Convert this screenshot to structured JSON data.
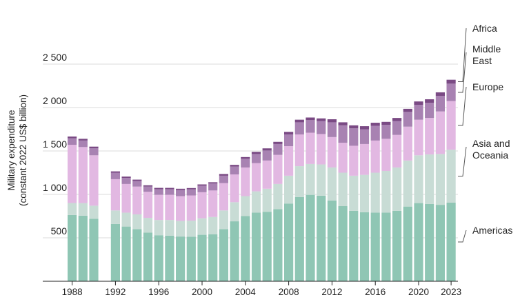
{
  "chart_data": {
    "type": "bar",
    "stacked": true,
    "ylabel_lines": [
      "Military expenditure",
      "(constant 2022 US$ billion)"
    ],
    "ylim": [
      0,
      2500
    ],
    "yticks": [
      500,
      1000,
      1500,
      2000,
      2500
    ],
    "ytick_labels": [
      "500",
      "1 000",
      "1 500",
      "2 000",
      "2 500"
    ],
    "grid": true,
    "xtick_labels": [
      "1988",
      "1992",
      "1996",
      "2000",
      "2004",
      "2008",
      "2012",
      "2016",
      "2020",
      "2023"
    ],
    "years": [
      1988,
      1989,
      1990,
      1991,
      1992,
      1993,
      1994,
      1995,
      1996,
      1997,
      1998,
      1999,
      2000,
      2001,
      2002,
      2003,
      2004,
      2005,
      2006,
      2007,
      2008,
      2009,
      2010,
      2011,
      2012,
      2013,
      2014,
      2015,
      2016,
      2017,
      2018,
      2019,
      2020,
      2021,
      2022,
      2023
    ],
    "series": [
      {
        "name": "Americas",
        "label_lines": [
          "Americas"
        ],
        "color": "#8fc6b4",
        "values": [
          763,
          755,
          720,
          null,
          660,
          630,
          600,
          560,
          530,
          525,
          515,
          513,
          535,
          540,
          600,
          690,
          750,
          790,
          800,
          830,
          895,
          970,
          995,
          985,
          930,
          865,
          810,
          795,
          790,
          790,
          810,
          860,
          900,
          890,
          880,
          905
        ]
      },
      {
        "name": "Asia and Oceania",
        "label_lines": [
          "Asia and",
          "Oceania"
        ],
        "color": "#c8dcd5",
        "values": [
          138,
          145,
          150,
          null,
          155,
          160,
          170,
          170,
          175,
          180,
          180,
          185,
          190,
          200,
          215,
          220,
          230,
          245,
          265,
          290,
          320,
          355,
          355,
          360,
          380,
          385,
          405,
          430,
          460,
          480,
          500,
          530,
          550,
          570,
          585,
          610
        ]
      },
      {
        "name": "Europe",
        "label_lines": [
          "Europe"
        ],
        "color": "#e2b8e2",
        "values": [
          670,
          645,
          580,
          null,
          360,
          330,
          320,
          300,
          290,
          290,
          285,
          290,
          300,
          305,
          315,
          320,
          330,
          325,
          325,
          335,
          340,
          365,
          360,
          350,
          350,
          345,
          345,
          355,
          370,
          370,
          375,
          390,
          410,
          420,
          490,
          560
        ]
      },
      {
        "name": "Middle East",
        "label_lines": [
          "Middle",
          "East"
        ],
        "color": "#a882b2",
        "values": [
          75,
          75,
          80,
          null,
          75,
          70,
          65,
          60,
          65,
          65,
          70,
          70,
          75,
          80,
          85,
          90,
          100,
          105,
          115,
          125,
          135,
          140,
          145,
          150,
          170,
          200,
          200,
          170,
          170,
          160,
          160,
          170,
          170,
          175,
          180,
          200
        ]
      },
      {
        "name": "Africa",
        "label_lines": [
          "Africa"
        ],
        "color": "#7a4a84",
        "values": [
          20,
          20,
          20,
          null,
          15,
          15,
          15,
          15,
          15,
          15,
          15,
          15,
          15,
          15,
          20,
          20,
          20,
          25,
          25,
          25,
          30,
          30,
          30,
          30,
          35,
          35,
          35,
          35,
          35,
          35,
          35,
          35,
          40,
          40,
          40,
          45
        ]
      }
    ]
  }
}
